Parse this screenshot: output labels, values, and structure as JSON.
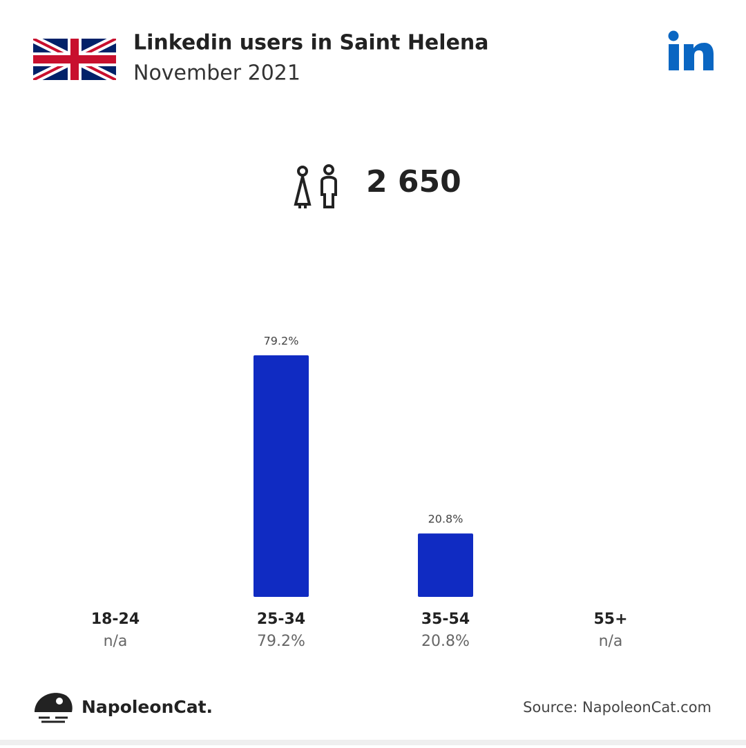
{
  "title": "Linkedin users in Saint Helena",
  "subtitle": "November 2021",
  "total_users": "2 650",
  "brand": "NapoleonCat.",
  "source": "Source: NapoleonCat.com",
  "chart_data": {
    "type": "bar",
    "categories": [
      "18-24",
      "25-34",
      "35-54",
      "55+"
    ],
    "values": [
      null,
      79.2,
      20.8,
      null
    ],
    "value_labels": [
      "n/a",
      "79.2%",
      "20.8%",
      "n/a"
    ],
    "color": "#102bc2"
  }
}
